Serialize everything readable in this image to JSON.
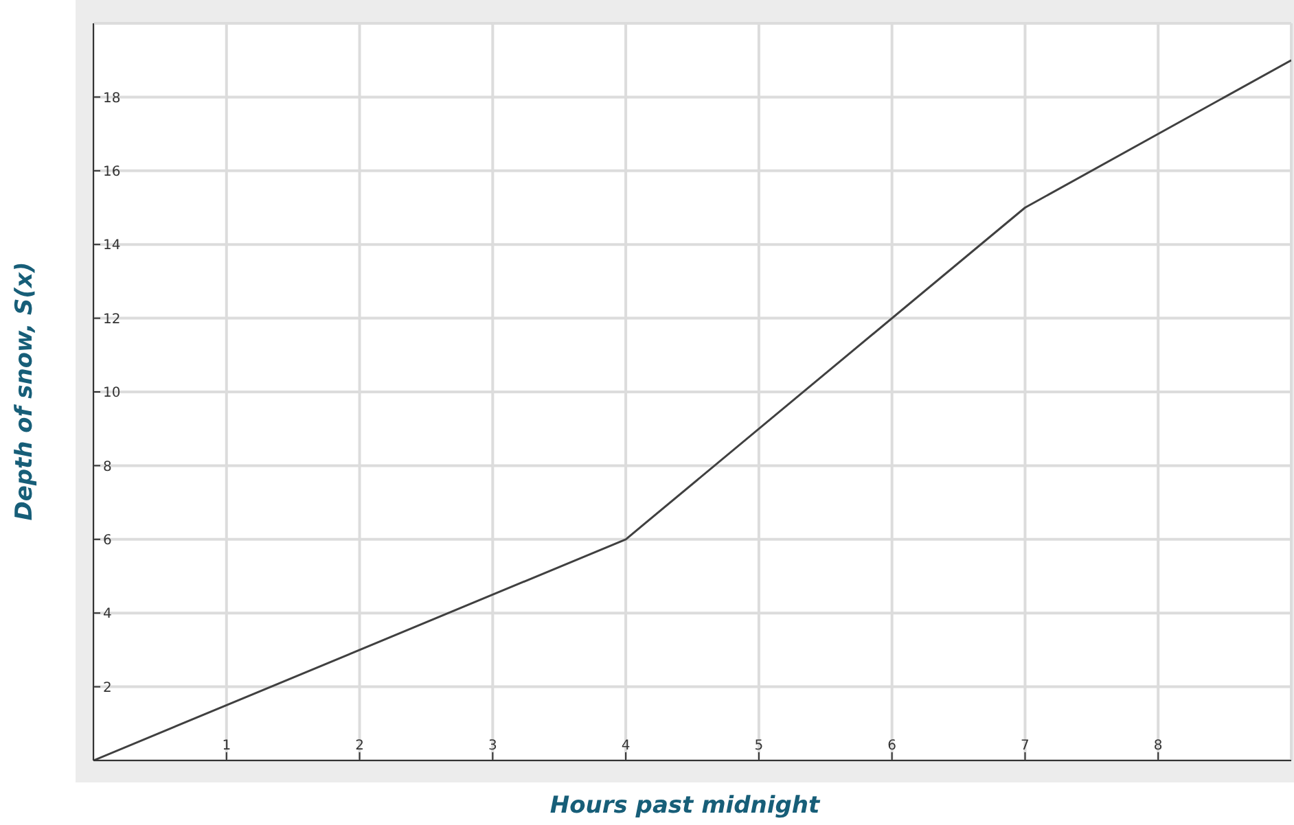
{
  "chart_data": {
    "type": "line",
    "xlabel": "Hours past midnight",
    "ylabel": "Depth of snow, S(x)",
    "x": [
      0,
      4,
      7,
      9
    ],
    "series": [
      {
        "color": "#404040",
        "values": [
          0,
          6,
          15,
          19
        ]
      }
    ],
    "xlim": [
      0,
      9
    ],
    "xticks": [
      1,
      2,
      3,
      4,
      5,
      6,
      7,
      8
    ],
    "ylim": [
      0,
      20
    ],
    "yticks": [
      2,
      4,
      6,
      8,
      10,
      12,
      14,
      16,
      18
    ],
    "grid": true,
    "marker": "none",
    "line_style": "solid",
    "legend": false
  }
}
